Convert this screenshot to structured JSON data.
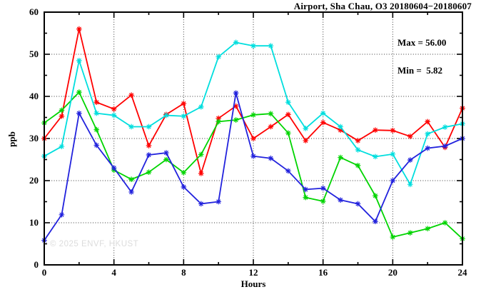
{
  "chart": {
    "title": "Airport, Sha Chau, O3 20180604−20180607",
    "legend": {
      "max_line": "Max = 56.00",
      "min_line": "Min =  5.82"
    },
    "ylabel": "ppb",
    "xlabel": "Hours",
    "watermark": "© 2025 ENVF, HKUST"
  },
  "chart_data": {
    "type": "line",
    "title": "Airport, Sha Chau, O3 20180604−20180607",
    "xlabel": "Hours",
    "ylabel": "ppb",
    "xlim": [
      0,
      24
    ],
    "ylim": [
      0,
      60
    ],
    "grid": "dotted-at-major-ticks",
    "legend_position": "top-right-inside",
    "marker": "star",
    "x": [
      0,
      1,
      2,
      3,
      4,
      5,
      6,
      7,
      8,
      9,
      10,
      11,
      12,
      13,
      14,
      15,
      16,
      17,
      18,
      19,
      20,
      21,
      22,
      23,
      24
    ],
    "series": [
      {
        "name": "series-red",
        "color": "#ff0000",
        "values": [
          30,
          35.3,
          56,
          38.6,
          37,
          40.3,
          28.3,
          35.7,
          38.3,
          21.7,
          34.8,
          37.7,
          30,
          32.8,
          35.7,
          29.5,
          33.8,
          32,
          29.5,
          32,
          31.9,
          30.5,
          34,
          27.9,
          37.2
        ]
      },
      {
        "name": "series-green",
        "color": "#00d400",
        "values": [
          33.7,
          36.7,
          41,
          32.1,
          22.5,
          20.3,
          22,
          25,
          21.9,
          26.2,
          34,
          34.4,
          35.6,
          35.9,
          31.3,
          16,
          15.1,
          25.5,
          23.6,
          16.4,
          6.6,
          7.6,
          8.6,
          10,
          6.2
        ]
      },
      {
        "name": "series-cyan",
        "color": "#00dede",
        "values": [
          25.8,
          28.1,
          48.5,
          36,
          35.5,
          32.8,
          32.8,
          35.5,
          35.3,
          37.5,
          49.4,
          52.8,
          52,
          52,
          38.6,
          32.4,
          36,
          32.8,
          27.3,
          25.7,
          26.3,
          19.1,
          31.1,
          32.7,
          33.5
        ]
      },
      {
        "name": "series-blue",
        "color": "#2222dd",
        "values": [
          5.82,
          11.9,
          36,
          28.4,
          23,
          17.3,
          26.1,
          26.6,
          18.5,
          14.5,
          15,
          40.8,
          25.8,
          25.3,
          22.3,
          17.9,
          18.2,
          15.4,
          14.5,
          10.3,
          20,
          24.9,
          27.7,
          28.2,
          30
        ]
      }
    ],
    "xticks_major": [
      0,
      4,
      8,
      12,
      16,
      20,
      24
    ],
    "xticks_minor": [
      2,
      6,
      10,
      14,
      18,
      22
    ],
    "yticks_major": [
      0,
      10,
      20,
      30,
      40,
      50,
      60
    ],
    "yticks_minor": [
      5,
      15,
      25,
      35,
      45,
      55
    ],
    "grid_lines_x": [
      4,
      8,
      12,
      16,
      20
    ],
    "grid_lines_y": [
      10,
      20,
      30,
      40,
      50
    ],
    "annotations": {
      "max": 56.0,
      "min": 5.82
    }
  }
}
